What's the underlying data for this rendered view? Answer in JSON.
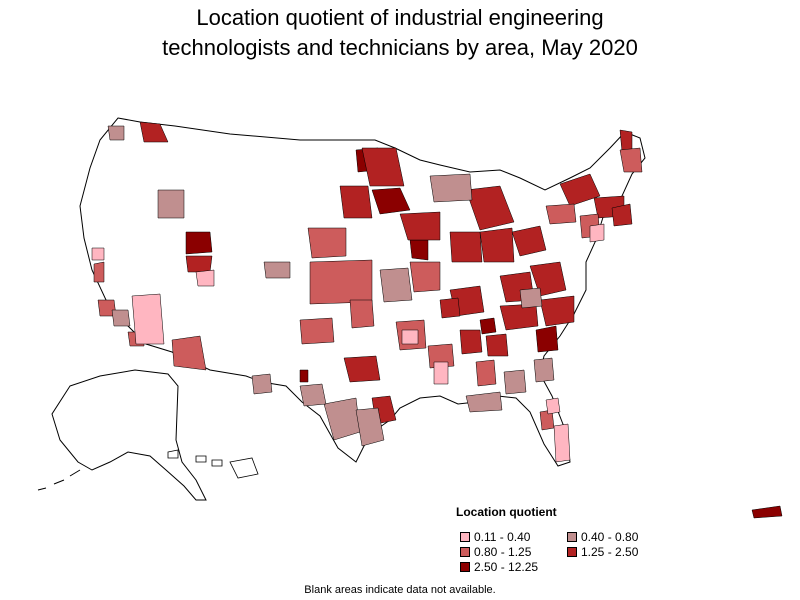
{
  "title_line1": "Location quotient of industrial engineering",
  "title_line2": "technologists and technicians by area, May 2020",
  "legend": {
    "title": "Location quotient",
    "items": [
      {
        "label": "0.11 - 0.40",
        "color": "#ffb6c1"
      },
      {
        "label": "0.40 - 0.80",
        "color": "#c08f8f"
      },
      {
        "label": "0.80 - 1.25",
        "color": "#cd5c5c"
      },
      {
        "label": "1.25 - 2.50",
        "color": "#b22222"
      },
      {
        "label": "2.50 - 12.25",
        "color": "#8b0000"
      }
    ]
  },
  "footnote": "Blank areas indicate data not available.",
  "colors": {
    "no_data": "#ffffff",
    "border": "#000000"
  }
}
